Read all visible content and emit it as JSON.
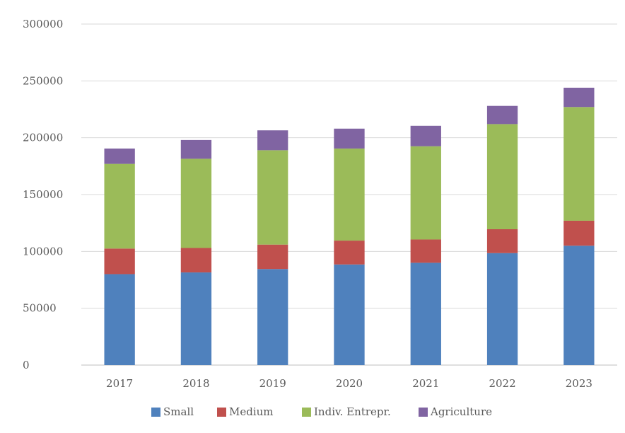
{
  "chart_data": {
    "type": "bar",
    "stacked": true,
    "categories": [
      "2017",
      "2018",
      "2019",
      "2020",
      "2021",
      "2022",
      "2023"
    ],
    "series": [
      {
        "name": "Small",
        "color": "#4f81bd",
        "values": [
          80000,
          81500,
          84500,
          88500,
          90000,
          98500,
          105000
        ]
      },
      {
        "name": "Medium",
        "color": "#c0504d",
        "values": [
          22500,
          21500,
          21500,
          21000,
          20500,
          21000,
          22000
        ]
      },
      {
        "name": "Indiv. Entrepr.",
        "color": "#9bbb59",
        "values": [
          74500,
          78500,
          83000,
          81000,
          82000,
          92500,
          100000
        ]
      },
      {
        "name": "Agriculture",
        "color": "#8064a2",
        "values": [
          13500,
          16500,
          17500,
          17500,
          18000,
          16000,
          17000
        ]
      }
    ],
    "ylim": [
      0,
      300000
    ],
    "yticks": [
      "0",
      "50000",
      "100000",
      "150000",
      "200000",
      "250000",
      "300000"
    ],
    "grid": true,
    "legend_position": "bottom"
  }
}
